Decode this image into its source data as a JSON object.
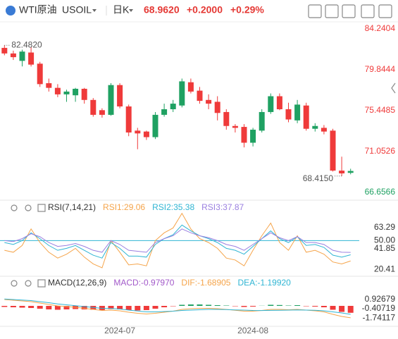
{
  "header": {
    "name": "WTI原油",
    "symbol": "USOIL",
    "period": "日K",
    "price": "68.9620",
    "change": "+0.2000",
    "change_pct": "+0.29%"
  },
  "chart_data": [
    {
      "type": "candlestick",
      "categories": [
        null,
        null,
        null,
        null,
        null,
        null,
        null,
        null,
        null,
        null,
        null,
        null,
        null,
        "2024-07",
        null,
        null,
        null,
        null,
        null,
        null,
        null,
        null,
        null,
        null,
        null,
        null,
        null,
        null,
        "2024-08",
        null,
        null,
        null,
        null,
        null,
        null,
        null,
        null,
        null,
        null,
        null
      ],
      "open": [
        82.2,
        81.6,
        80.8,
        81.7,
        80.5,
        78.4,
        77.9,
        77.2,
        77.1,
        77.8,
        76.6,
        75.5,
        75.0,
        78.2,
        75.9,
        73.3,
        73.2,
        72.6,
        75.0,
        75.6,
        76.0,
        78.5,
        77.6,
        76.6,
        76.4,
        75.3,
        73.8,
        73.7,
        72.0,
        73.3,
        75.3,
        77.0,
        75.6,
        74.4,
        76.0,
        73.5,
        73.6,
        73.3,
        69.0,
        68.76
      ],
      "high": [
        82.482,
        81.9,
        82.0,
        82.3,
        80.7,
        78.9,
        78.3,
        77.7,
        77.9,
        77.9,
        76.8,
        75.7,
        78.4,
        78.4,
        76.1,
        73.6,
        73.3,
        75.3,
        76.2,
        76.6,
        78.9,
        78.9,
        78.0,
        77.2,
        77.0,
        75.6,
        74.0,
        74.0,
        73.6,
        75.6,
        77.3,
        77.3,
        76.3,
        76.6,
        76.3,
        74.1,
        73.9,
        73.5,
        70.5,
        69.2
      ],
      "low": [
        81.4,
        80.9,
        80.2,
        80.2,
        78.0,
        77.5,
        76.9,
        76.4,
        76.4,
        76.2,
        74.8,
        74.7,
        74.9,
        75.7,
        72.7,
        71.3,
        72.3,
        72.4,
        74.8,
        75.3,
        75.8,
        77.3,
        76.2,
        75.6,
        74.4,
        73.4,
        73.1,
        71.5,
        71.6,
        73.1,
        75.1,
        75.5,
        74.2,
        74.1,
        73.3,
        73.2,
        72.9,
        68.9,
        68.415,
        68.6
      ],
      "close": [
        81.6,
        81.2,
        81.8,
        80.4,
        78.3,
        77.9,
        77.2,
        77.5,
        77.8,
        76.6,
        75.0,
        75.0,
        78.2,
        75.9,
        73.1,
        73.0,
        72.6,
        75.0,
        75.6,
        76.2,
        78.6,
        77.5,
        76.5,
        76.2,
        75.2,
        73.8,
        73.6,
        72.0,
        73.4,
        75.3,
        77.0,
        75.6,
        74.5,
        76.1,
        73.5,
        73.8,
        73.2,
        69.0,
        68.7,
        68.962
      ],
      "up_color": "#1fa162",
      "down_color": "#ef3a3a",
      "ylim": [
        66.6566,
        84.2404
      ],
      "yticks": [
        84.2404,
        79.8444,
        75.4485,
        71.0526,
        66.6566
      ],
      "max_label": {
        "value": 82.482,
        "label": "82.4820"
      },
      "min_label": {
        "value": 68.415,
        "label": "68.4150"
      }
    },
    {
      "type": "line",
      "title": "RSI(7,14,21)",
      "series": [
        {
          "name": "RSI1:29.06",
          "color": "#f5a44a",
          "values": [
            40,
            38,
            45,
            62,
            48,
            38,
            32,
            36,
            42,
            33,
            26,
            22,
            50,
            38,
            25,
            26,
            24,
            50,
            58,
            63,
            78,
            62,
            52,
            48,
            42,
            32,
            30,
            24,
            40,
            55,
            68,
            48,
            40,
            55,
            38,
            40,
            36,
            28,
            26,
            29.06
          ]
        },
        {
          "name": "RSI2:35.38",
          "color": "#2fb5d3",
          "values": [
            48,
            46,
            50,
            58,
            52,
            45,
            40,
            42,
            45,
            40,
            35,
            32,
            48,
            42,
            34,
            34,
            33,
            46,
            52,
            56,
            66,
            60,
            55,
            52,
            48,
            42,
            40,
            36,
            44,
            52,
            60,
            52,
            48,
            54,
            45,
            46,
            43,
            35,
            33,
            35.38
          ]
        },
        {
          "name": "RSI3:37.87",
          "color": "#9a7fe0",
          "values": [
            50,
            49,
            52,
            57,
            54,
            48,
            44,
            45,
            47,
            44,
            40,
            38,
            50,
            46,
            40,
            39,
            38,
            48,
            52,
            55,
            62,
            58,
            55,
            53,
            50,
            46,
            44,
            40,
            46,
            52,
            58,
            53,
            50,
            54,
            48,
            48,
            46,
            40,
            38,
            37.87
          ]
        }
      ],
      "ylim": [
        14,
        80
      ],
      "yticks": [
        63.29,
        {
          "value": 50,
          "label": "50.00"
        },
        41.85,
        20.41
      ],
      "reference_color": "#2fb5d3"
    },
    {
      "type": "macd",
      "title": "MACD(12,26,9)",
      "series": [
        {
          "name": "MACD:-0.97970",
          "color": "#a259c9",
          "up_color": "#1fa162",
          "down_color": "#ef3a3a",
          "values": [
            -0.15,
            -0.2,
            -0.25,
            -0.3,
            -0.4,
            -0.5,
            -0.55,
            -0.5,
            -0.45,
            -0.5,
            -0.55,
            -0.6,
            -0.45,
            -0.5,
            -0.6,
            -0.65,
            -0.6,
            -0.4,
            -0.2,
            -0.05,
            0.15,
            0.2,
            0.2,
            0.15,
            0.1,
            0.05,
            -0.05,
            -0.15,
            -0.1,
            0.02,
            0.15,
            0.12,
            0.05,
            0.1,
            -0.05,
            -0.1,
            -0.2,
            -0.55,
            -0.85,
            -0.9797
          ]
        },
        {
          "name": "DIF:-1.68905",
          "color": "#f5a44a",
          "values": [
            0.9,
            0.8,
            0.7,
            0.6,
            0.4,
            0.2,
            0.0,
            -0.1,
            -0.2,
            -0.35,
            -0.5,
            -0.65,
            -0.6,
            -0.7,
            -0.9,
            -1.05,
            -1.15,
            -1.05,
            -0.9,
            -0.75,
            -0.5,
            -0.4,
            -0.35,
            -0.35,
            -0.4,
            -0.5,
            -0.62,
            -0.75,
            -0.75,
            -0.65,
            -0.5,
            -0.5,
            -0.55,
            -0.5,
            -0.6,
            -0.7,
            -0.85,
            -1.2,
            -1.5,
            -1.68905
          ]
        },
        {
          "name": "DEA:-1.19920",
          "color": "#2fb5d3",
          "values": [
            0.98,
            0.9,
            0.82,
            0.75,
            0.6,
            0.45,
            0.28,
            0.15,
            0.02,
            -0.1,
            -0.22,
            -0.35,
            -0.38,
            -0.45,
            -0.6,
            -0.72,
            -0.85,
            -0.85,
            -0.8,
            -0.75,
            -0.65,
            -0.6,
            -0.55,
            -0.5,
            -0.5,
            -0.52,
            -0.57,
            -0.6,
            -0.65,
            -0.66,
            -0.64,
            -0.62,
            -0.6,
            -0.58,
            -0.6,
            -0.62,
            -0.7,
            -0.85,
            -1.0,
            -1.1992
          ]
        }
      ],
      "ylim": [
        -2.7,
        2.4
      ],
      "yticks": [
        0.92679,
        -0.40719,
        -1.74117
      ]
    }
  ]
}
